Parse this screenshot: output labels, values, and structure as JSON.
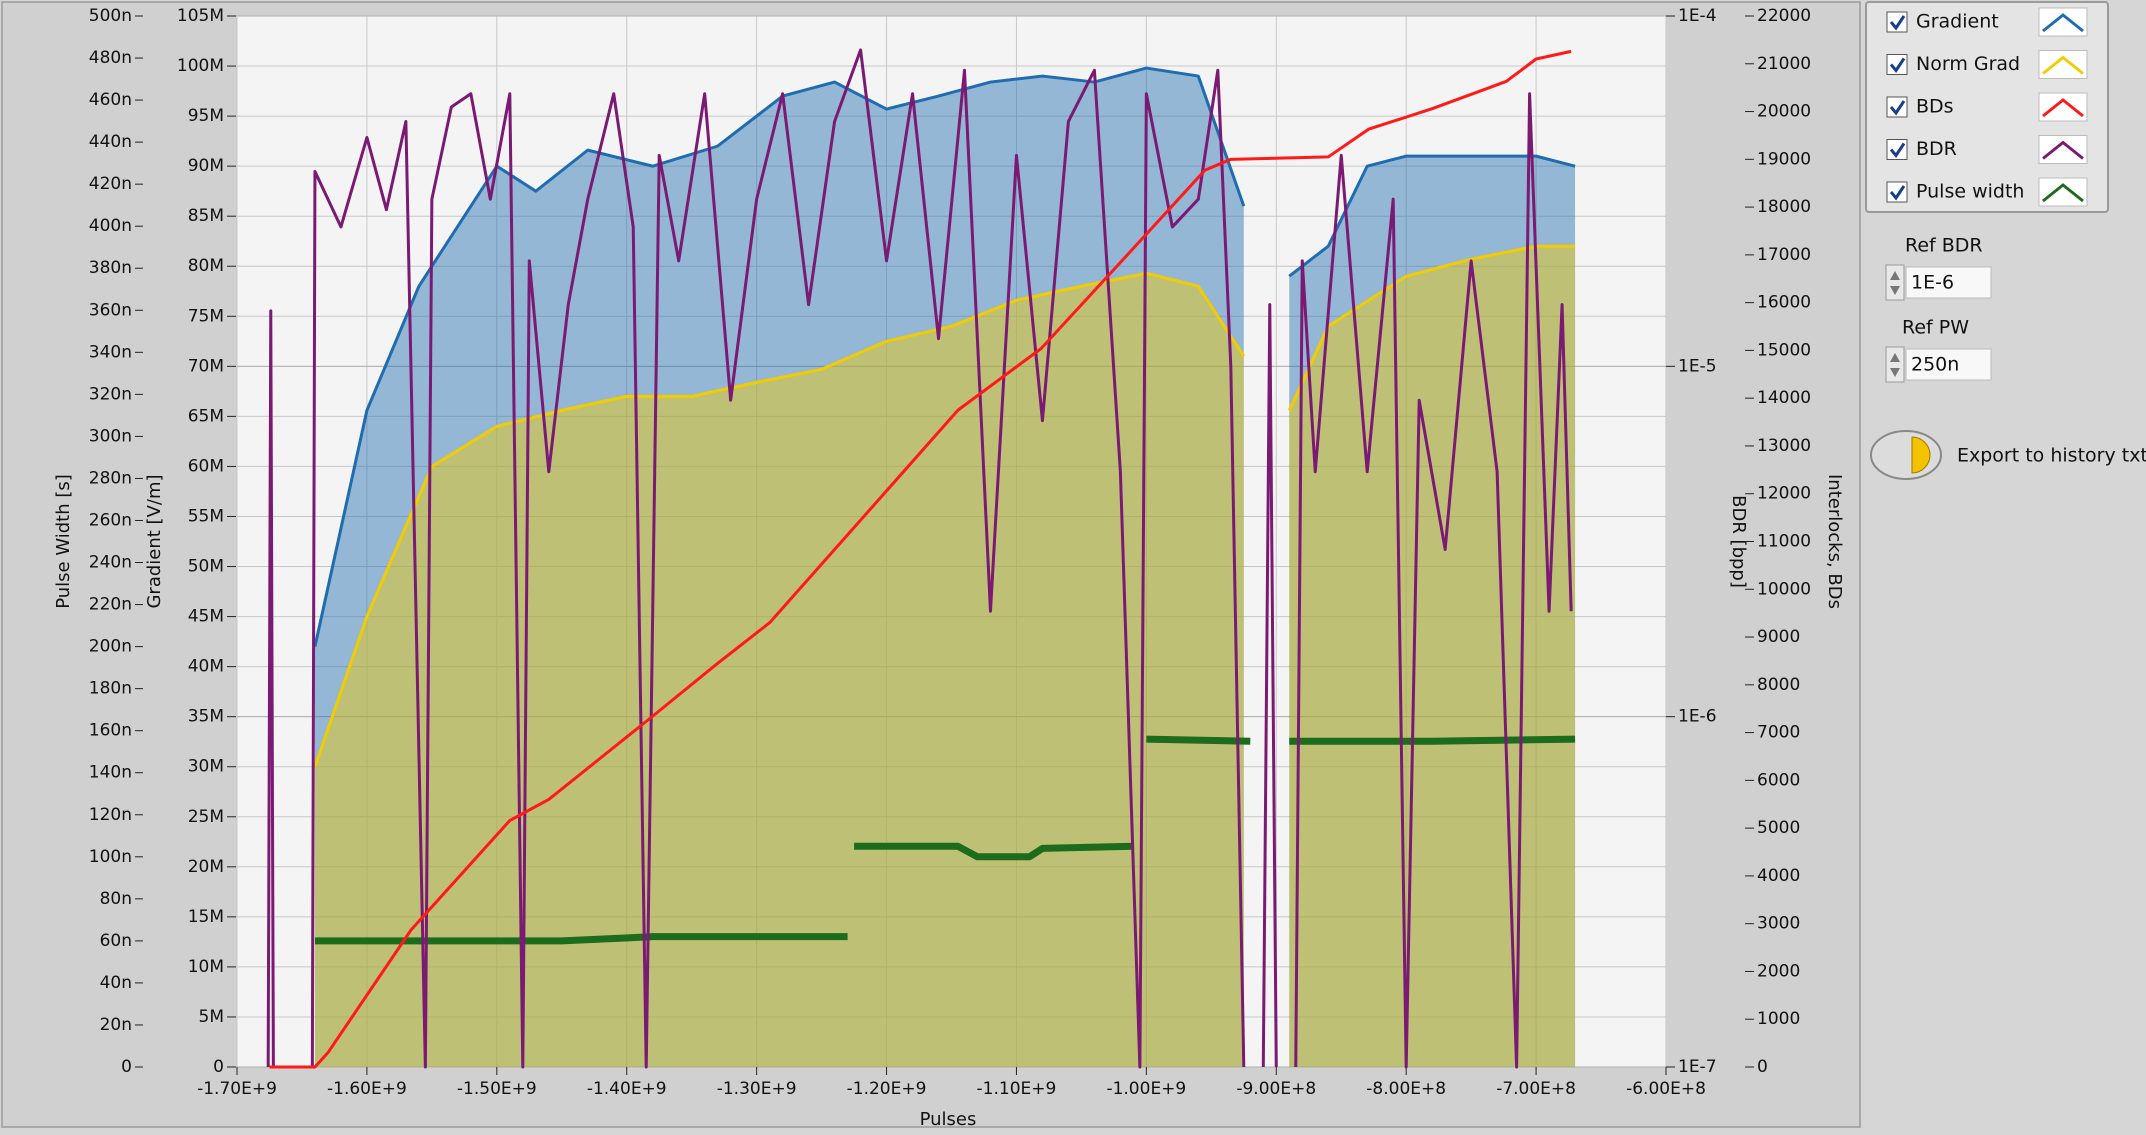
{
  "chart_data": {
    "type": "line",
    "x_label": "Pulses",
    "xlim": [
      -1700000000,
      -600000000
    ],
    "xticks": [
      {
        "value": -1700000000,
        "label": "-1.70E+9"
      },
      {
        "value": -1600000000,
        "label": "-1.60E+9"
      },
      {
        "value": -1500000000,
        "label": "-1.50E+9"
      },
      {
        "value": -1400000000,
        "label": "-1.40E+9"
      },
      {
        "value": -1300000000,
        "label": "-1.30E+9"
      },
      {
        "value": -1200000000,
        "label": "-1.20E+9"
      },
      {
        "value": -1100000000,
        "label": "-1.10E+9"
      },
      {
        "value": -1000000000,
        "label": "-1.00E+9"
      },
      {
        "value": -900000000,
        "label": "-9.00E+8"
      },
      {
        "value": -800000000,
        "label": "-8.00E+8"
      },
      {
        "value": -700000000,
        "label": "-7.00E+8"
      },
      {
        "value": -600000000,
        "label": "-6.00E+8"
      }
    ],
    "grid": true,
    "axes": [
      {
        "title": "Pulse Width [s]",
        "lim": [
          0,
          5e-07
        ],
        "ticks": [
          0,
          {
            "value": 2e-08,
            "label": "20n"
          },
          {
            "value": 4e-08,
            "label": "40n"
          },
          {
            "value": 6e-08,
            "label": "60n"
          },
          {
            "value": 8e-08,
            "label": "80n"
          },
          {
            "value": 1e-07,
            "label": "100n"
          },
          {
            "value": 1.2e-07,
            "label": "120n"
          },
          {
            "value": 1.4e-07,
            "label": "140n"
          },
          {
            "value": 1.6e-07,
            "label": "160n"
          },
          {
            "value": 1.8e-07,
            "label": "180n"
          },
          {
            "value": 2e-07,
            "label": "200n"
          },
          {
            "value": 2.2e-07,
            "label": "220n"
          },
          {
            "value": 2.4e-07,
            "label": "240n"
          },
          {
            "value": 2.6e-07,
            "label": "260n"
          },
          {
            "value": 2.8e-07,
            "label": "280n"
          },
          {
            "value": 3e-07,
            "label": "300n"
          },
          {
            "value": 3.2e-07,
            "label": "320n"
          },
          {
            "value": 3.4e-07,
            "label": "340n"
          },
          {
            "value": 3.6e-07,
            "label": "360n"
          },
          {
            "value": 3.8e-07,
            "label": "380n"
          },
          {
            "value": 4e-07,
            "label": "400n"
          },
          {
            "value": 4.2e-07,
            "label": "420n"
          },
          {
            "value": 4.4e-07,
            "label": "440n"
          },
          {
            "value": 4.6e-07,
            "label": "460n"
          },
          {
            "value": 4.8e-07,
            "label": "480n"
          },
          {
            "value": 5e-07,
            "label": "500n"
          }
        ]
      },
      {
        "title": "Gradient [V/m]",
        "lim": [
          0,
          105000000
        ],
        "ticks": [
          0,
          {
            "value": 5000000,
            "label": "5M"
          },
          {
            "value": 10000000,
            "label": "10M"
          },
          {
            "value": 15000000,
            "label": "15M"
          },
          {
            "value": 20000000,
            "label": "20M"
          },
          {
            "value": 25000000,
            "label": "25M"
          },
          {
            "value": 30000000,
            "label": "30M"
          },
          {
            "value": 35000000,
            "label": "35M"
          },
          {
            "value": 40000000,
            "label": "40M"
          },
          {
            "value": 45000000,
            "label": "45M"
          },
          {
            "value": 50000000,
            "label": "50M"
          },
          {
            "value": 55000000,
            "label": "55M"
          },
          {
            "value": 60000000,
            "label": "60M"
          },
          {
            "value": 65000000,
            "label": "65M"
          },
          {
            "value": 70000000,
            "label": "70M"
          },
          {
            "value": 75000000,
            "label": "75M"
          },
          {
            "value": 80000000,
            "label": "80M"
          },
          {
            "value": 85000000,
            "label": "85M"
          },
          {
            "value": 90000000,
            "label": "90M"
          },
          {
            "value": 95000000,
            "label": "95M"
          },
          {
            "value": 100000000,
            "label": "100M"
          },
          {
            "value": 105000000,
            "label": "105M"
          }
        ]
      },
      {
        "title": "BDR [bpp]",
        "log": true,
        "lim": [
          1e-07,
          0.0001
        ],
        "ticks": [
          {
            "value": 1e-07,
            "label": "1E-7"
          },
          {
            "value": 1e-06,
            "label": "1E-6"
          },
          {
            "value": 1e-05,
            "label": "1E-5"
          },
          {
            "value": 0.0001,
            "label": "1E-4"
          }
        ]
      },
      {
        "title": "Interlocks, BDs",
        "lim": [
          0,
          22000
        ],
        "ticks": [
          0,
          1000,
          2000,
          3000,
          4000,
          5000,
          6000,
          7000,
          8000,
          9000,
          10000,
          11000,
          12000,
          13000,
          14000,
          15000,
          16000,
          17000,
          18000,
          19000,
          20000,
          21000,
          22000
        ]
      }
    ],
    "series": [
      {
        "name": "Gradient",
        "color": "#1f6cb0",
        "axis": 1,
        "x": [
          -1640000000,
          -1600000000,
          -1560000000,
          -1520000000,
          -1500000000,
          -1470000000,
          -1430000000,
          -1380000000,
          -1330000000,
          -1280000000,
          -1240000000,
          -1200000000,
          -1160000000,
          -1120000000,
          -1080000000,
          -1040000000,
          -1000000000,
          -960000000,
          -925000000,
          null,
          -890000000,
          -860000000,
          -830000000,
          -800000000,
          -750000000,
          -700000000,
          -670000000
        ],
        "values": [
          42000000,
          65600000,
          78000000,
          86000000,
          90000000,
          87500000,
          91600000,
          90000000,
          92000000,
          97000000,
          98400000,
          95700000,
          97000000,
          98400000,
          99000000,
          98400000,
          99800000,
          99000000,
          86000000,
          null,
          79000000,
          82000000,
          90000000,
          91000000,
          91000000,
          91000000,
          90000000
        ]
      },
      {
        "name": "Norm Grad",
        "color": "#f2cc00",
        "axis": 1,
        "x": [
          -1640000000,
          -1600000000,
          -1550000000,
          -1500000000,
          -1450000000,
          -1400000000,
          -1350000000,
          -1300000000,
          -1250000000,
          -1200000000,
          -1150000000,
          -1100000000,
          -1050000000,
          -1000000000,
          -960000000,
          -925000000,
          null,
          -890000000,
          -860000000,
          -800000000,
          -750000000,
          -700000000,
          -670000000
        ],
        "values": [
          30000000,
          45000000,
          60000000,
          64000000,
          65600000,
          67000000,
          67000000,
          68400000,
          69700000,
          72500000,
          74000000,
          76600000,
          78000000,
          79300000,
          78000000,
          71000000,
          null,
          65600000,
          74000000,
          79000000,
          80700000,
          82000000,
          82000000
        ]
      },
      {
        "name": "BDs",
        "color": "#ff1a1a",
        "axis": 3,
        "x": [
          -1675000000,
          -1640000000,
          -1630000000,
          -1566000000,
          -1490000000,
          -1460000000,
          -1382000000,
          -1330000000,
          -1290000000,
          -1229000000,
          -1145000000,
          -1081000000,
          -1018000000,
          -955000000,
          -935000000,
          -860000000,
          -829000000,
          -780000000,
          -723000000,
          -700000000,
          -673000000
        ],
        "values": [
          0,
          0,
          300,
          2870,
          5160,
          5600,
          7300,
          8450,
          9300,
          11170,
          13750,
          15040,
          16900,
          18770,
          19000,
          19050,
          19630,
          20060,
          20630,
          21100,
          21260
        ]
      },
      {
        "name": "BDR",
        "color": "#7a1a72",
        "axis": 2,
        "x": [
          -1676000000,
          -1674000000,
          -1672000000,
          -1642000000,
          -1640000000,
          -1620000000,
          -1600000000,
          -1585000000,
          -1570000000,
          -1555000000,
          -1550000000,
          -1535000000,
          -1520000000,
          -1505000000,
          -1490000000,
          -1480000000,
          -1475000000,
          -1460000000,
          -1445000000,
          -1430000000,
          -1410000000,
          -1395000000,
          -1385000000,
          -1375000000,
          -1360000000,
          -1340000000,
          -1320000000,
          -1300000000,
          -1280000000,
          -1260000000,
          -1240000000,
          -1220000000,
          -1200000000,
          -1180000000,
          -1160000000,
          -1140000000,
          -1120000000,
          -1100000000,
          -1080000000,
          -1060000000,
          -1040000000,
          -1020000000,
          -1005000000,
          -1000000000,
          -980000000,
          -960000000,
          -945000000,
          -935000000,
          -925000000,
          null,
          -910000000,
          -905000000,
          -900000000,
          null,
          -885000000,
          -880000000,
          -870000000,
          -850000000,
          -830000000,
          -810000000,
          -800000000,
          -790000000,
          -770000000,
          -750000000,
          -730000000,
          -715000000,
          -705000000,
          -690000000,
          -680000000,
          -673000000
        ],
        "values": [
          1e-07,
          1.44e-05,
          1e-07,
          1e-07,
          3.6e-05,
          2.5e-05,
          4.5e-05,
          2.8e-05,
          5e-05,
          1e-07,
          3e-05,
          5.5e-05,
          6e-05,
          3e-05,
          6e-05,
          1e-07,
          2e-05,
          5e-06,
          1.5e-05,
          3e-05,
          6e-05,
          2.5e-05,
          1e-07,
          4e-05,
          2e-05,
          6e-05,
          8e-06,
          3e-05,
          6e-05,
          1.5e-05,
          5e-05,
          8e-05,
          2e-05,
          6e-05,
          1.2e-05,
          7e-05,
          2e-06,
          4e-05,
          7e-06,
          5e-05,
          7e-05,
          5e-06,
          1e-07,
          6e-05,
          2.5e-05,
          3e-05,
          7e-05,
          1e-05,
          1e-07,
          null,
          1e-07,
          1.5e-05,
          1e-07,
          null,
          1e-07,
          2e-05,
          5e-06,
          4e-05,
          5e-06,
          3e-05,
          1e-07,
          8e-06,
          3e-06,
          2e-05,
          5e-06,
          1e-07,
          6e-05,
          2e-06,
          1.5e-05,
          2e-06
        ]
      },
      {
        "name": "Pulse width",
        "color": "#1d6b1d",
        "axis": 0,
        "x": [
          -1640000000,
          -1550000000,
          -1450000000,
          -1380000000,
          -1300000000,
          -1230000000,
          null,
          -1225000000,
          -1145000000,
          -1130000000,
          -1090000000,
          -1080000000,
          -1010000000,
          null,
          -1000000000,
          -920000000,
          null,
          -890000000,
          -780000000,
          -670000000
        ],
        "values": [
          6e-08,
          6e-08,
          6e-08,
          6.2e-08,
          6.2e-08,
          6.2e-08,
          null,
          1.05e-07,
          1.05e-07,
          1e-07,
          1e-07,
          1.04e-07,
          1.05e-07,
          null,
          1.56e-07,
          1.55e-07,
          null,
          1.55e-07,
          1.55e-07,
          1.56e-07
        ]
      }
    ]
  },
  "controls": {
    "ref_bdr": {
      "label": "Ref BDR",
      "value": "1E-6"
    },
    "ref_pw": {
      "label": "Ref PW",
      "value": "250n"
    },
    "export_button": "Export to history txt"
  }
}
